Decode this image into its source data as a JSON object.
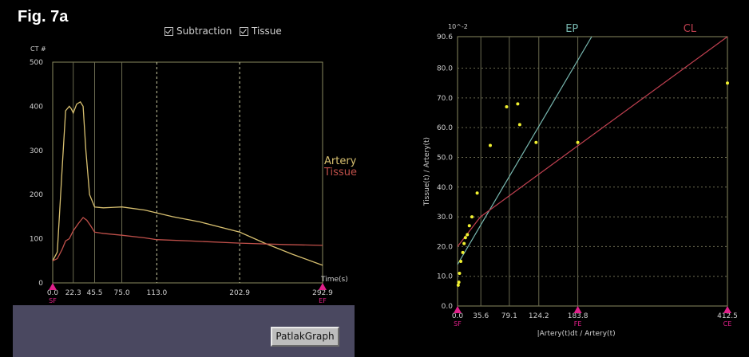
{
  "figure_label": "Fig. 7a",
  "legend_checks": {
    "subtraction": "Subtraction",
    "tissue": "Tissue"
  },
  "button": {
    "patlak": "PatlakGraph"
  },
  "colors": {
    "artery": "#d8c070",
    "tissue": "#c0504a",
    "ep": "#78b8b0",
    "cl": "#c04050",
    "marker": "#e0208a",
    "points": "#f0f030",
    "grid": "#8a8a60"
  },
  "chart_data": [
    {
      "type": "line",
      "ylabel": "CT #",
      "xlabel": "Time(s)",
      "ylim": [
        0,
        500
      ],
      "yticks": [
        "0",
        "100",
        "200",
        "300",
        "400",
        "500"
      ],
      "xticks": [
        "0.0",
        "22.3",
        "45.5",
        "75.0",
        "113.0",
        "202.9",
        "292.9"
      ],
      "xtick_values": [
        0,
        22.3,
        45.5,
        75.0,
        113.0,
        202.9,
        292.9
      ],
      "dashed_gridline_x": [
        113.0,
        202.9
      ],
      "endpoint_markers": [
        "SF",
        "EF"
      ],
      "curve_labels": [
        "Artery",
        "Tissue"
      ],
      "series": [
        {
          "name": "Artery",
          "x": [
            0,
            5,
            10,
            14,
            18,
            20,
            22.3,
            26,
            30,
            33,
            36,
            40,
            45.5,
            55,
            65,
            75,
            100,
            130,
            160,
            202.9,
            230,
            260,
            292.9
          ],
          "y": [
            50,
            70,
            250,
            390,
            400,
            395,
            385,
            405,
            410,
            400,
            300,
            200,
            172,
            170,
            171,
            172,
            165,
            150,
            138,
            115,
            90,
            65,
            40
          ]
        },
        {
          "name": "Tissue",
          "x": [
            0,
            5,
            10,
            14,
            18,
            22.3,
            28,
            33,
            37,
            41,
            45.5,
            55,
            75,
            100,
            113,
            150,
            202.9,
            250,
            292.9
          ],
          "y": [
            50,
            55,
            75,
            95,
            100,
            118,
            135,
            148,
            142,
            130,
            115,
            112,
            108,
            102,
            98,
            95,
            90,
            87,
            85
          ]
        }
      ]
    },
    {
      "type": "scatter",
      "ylabel": "Tissue(t) / Artery(t)",
      "xlabel": "|Artery(t)dt / Artery(t)",
      "y_multiplier_label": "10^-2",
      "ylim": [
        0,
        90.6
      ],
      "xlim": [
        0,
        412.5
      ],
      "yticks": [
        "0.0",
        "10.0",
        "20.0",
        "30.0",
        "40.0",
        "50.0",
        "60.0",
        "70.0",
        "80.0",
        "90.6"
      ],
      "xticks": [
        "0.0",
        "35.6",
        "79.1",
        "124.2",
        "183.8",
        "412.5"
      ],
      "xtick_values": [
        0,
        35.6,
        79.1,
        124.2,
        183.8,
        412.5
      ],
      "endpoint_markers": [
        "SF",
        "FE",
        "CE"
      ],
      "fit_lines": [
        {
          "name": "EP",
          "x": [
            0,
            205
          ],
          "y": [
            14,
            91
          ]
        },
        {
          "name": "CL",
          "x": [
            0,
            35,
            412.5
          ],
          "y": [
            20,
            30,
            90.6
          ]
        }
      ],
      "points": {
        "x": [
          1,
          2,
          3,
          5,
          8,
          10,
          12,
          15,
          18,
          22,
          30,
          50,
          75,
          92,
          95,
          120,
          183.8,
          412.5
        ],
        "y": [
          7,
          8,
          11,
          15,
          18,
          21,
          23,
          24,
          27,
          30,
          38,
          54,
          67,
          68,
          61,
          55,
          55,
          75
        ]
      }
    }
  ]
}
